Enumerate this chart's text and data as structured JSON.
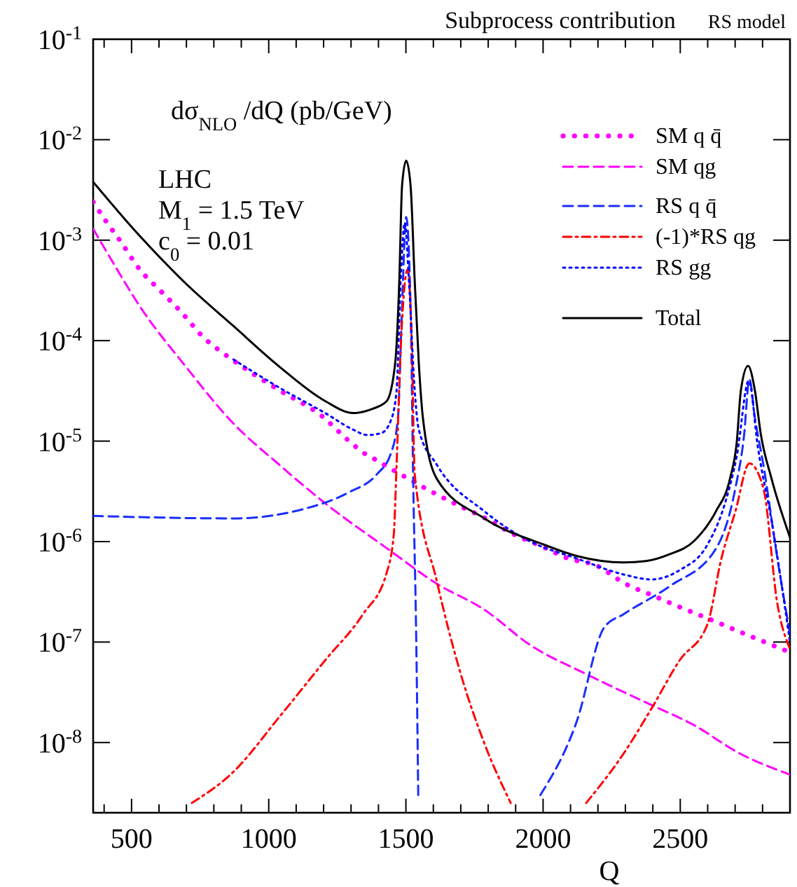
{
  "chart_data": {
    "type": "line",
    "title": "Subprocess contribution",
    "subtitle": "RS model",
    "xlabel": "Q",
    "ylabel": "dσ$_{NLO}$ /dQ (pb/GeV)",
    "annotations": [
      "LHC",
      "M$_{1}$ = 1.5 TeV",
      "c$_{0}$ = 0.01"
    ],
    "log": "y",
    "grid": false,
    "legend": "top right",
    "xlim": [
      360,
      2900
    ],
    "xticks": [
      {
        "value": 400,
        "label": null
      },
      500,
      {
        "value": 600,
        "label": null
      },
      {
        "value": 700,
        "label": null
      },
      {
        "value": 800,
        "label": null
      },
      {
        "value": 900,
        "label": null
      },
      1000,
      {
        "value": 1100,
        "label": null
      },
      {
        "value": 1200,
        "label": null
      },
      {
        "value": 1300,
        "label": null
      },
      {
        "value": 1400,
        "label": null
      },
      1500,
      {
        "value": 1600,
        "label": null
      },
      {
        "value": 1700,
        "label": null
      },
      {
        "value": 1800,
        "label": null
      },
      {
        "value": 1900,
        "label": null
      },
      2000,
      {
        "value": 2100,
        "label": null
      },
      {
        "value": 2200,
        "label": null
      },
      {
        "value": 2300,
        "label": null
      },
      {
        "value": 2400,
        "label": null
      },
      2500,
      {
        "value": 2600,
        "label": null
      },
      {
        "value": 2700,
        "label": null
      },
      {
        "value": 2800,
        "label": null
      }
    ],
    "ylim": [
      2e-09,
      0.1
    ],
    "yticks": [
      {
        "value": 0.1,
        "label": "10$^{-1}$"
      },
      {
        "value": 0.01,
        "label": "10$^{-2}$"
      },
      {
        "value": 0.001,
        "label": "10$^{-3}$"
      },
      {
        "value": 0.0001,
        "label": "10$^{-4}$"
      },
      {
        "value": 1e-05,
        "label": "10$^{-5}$"
      },
      {
        "value": 1e-06,
        "label": "10$^{-6}$"
      },
      {
        "value": 1e-07,
        "label": "10$^{-7}$"
      },
      {
        "value": 1e-08,
        "label": "10$^{-8}$"
      }
    ],
    "series": [
      {
        "name": "SM q q̄",
        "color": "#ff00ff",
        "line_style": "dotted",
        "x": [
          360,
          403,
          459,
          530,
          607,
          683,
          759,
          846,
          937,
          1039,
          1191,
          1293,
          1344,
          1395,
          1491,
          1588,
          1690,
          1791,
          1888,
          1990,
          2091,
          2193,
          2300,
          2401,
          2503,
          2605,
          2706,
          2808,
          2900
        ],
        "values": [
          0.0024,
          0.0016,
          0.00098,
          0.00051,
          0.00031,
          0.00019,
          0.00011,
          7.1e-05,
          4.8e-05,
          3.2e-05,
          1.8e-05,
          1e-05,
          7.7e-06,
          6.4e-06,
          4.5e-06,
          3.2e-06,
          2.3e-06,
          1.7e-06,
          1.2e-06,
          9.1e-07,
          6.8e-07,
          5.8e-07,
          3.8e-07,
          2.9e-07,
          2.2e-07,
          1.7e-07,
          1.3e-07,
          1e-07,
          7.9e-08
        ]
      },
      {
        "name": "SM qg",
        "color": "#ff00ff",
        "line_style": "dashed",
        "x": [
          360,
          429,
          530,
          698,
          871,
          1039,
          1206,
          1430,
          1613,
          1786,
          1954,
          2157,
          2375,
          2548,
          2716,
          2900
        ],
        "values": [
          0.0013,
          0.00062,
          0.00022,
          5.5e-05,
          1.5e-05,
          5.8e-06,
          2.4e-06,
          8.6e-07,
          3.8e-07,
          2.1e-07,
          9.3e-08,
          4.8e-08,
          2.5e-08,
          1.5e-08,
          7.8e-09,
          4.8e-09
        ]
      },
      {
        "name": "RS q q̄",
        "color": "#1a2eff",
        "line_style": "dashed",
        "x": [
          360,
          871,
          1125,
          1293,
          1395,
          1445,
          1471,
          1486,
          1501,
          1517,
          1527,
          1537,
          1545,
          1700,
          1990,
          2122,
          2223,
          2294,
          2462,
          2630,
          2701,
          2732,
          2752,
          2772,
          2803,
          2854,
          2900
        ],
        "values": [
          1.8e-06,
          1.7e-06,
          2.1e-06,
          3.1e-06,
          4.7e-06,
          7.5e-06,
          1.7e-05,
          0.00022,
          0.0017,
          0.00022,
          3.4e-06,
          1.4e-07,
          3e-09,
          null,
          3e-09,
          1.6e-08,
          1.4e-07,
          1.9e-07,
          3.6e-07,
          8.5e-07,
          3.4e-06,
          1.1e-05,
          4.1e-05,
          1.7e-05,
          5.8e-06,
          6.8e-07,
          1.2e-07
        ]
      },
      {
        "name": "(-1)*RS qg",
        "color": "#ff0000",
        "line_style": "dashdot",
        "x": [
          720,
          871,
          1039,
          1206,
          1344,
          1430,
          1456,
          1466,
          1481,
          1506,
          1522,
          1532,
          1613,
          1700,
          1786,
          1882,
          2000,
          2157,
          2294,
          2396,
          2498,
          2599,
          2650,
          2701,
          2752,
          2803,
          2854,
          2900
        ],
        "values": [
          2.5e-09,
          5.1e-09,
          1.8e-08,
          6.6e-08,
          1.9e-07,
          4.9e-07,
          1.2e-06,
          5.8e-06,
          8.3e-05,
          0.00051,
          8.3e-05,
          4.7e-06,
          4e-07,
          4.8e-08,
          9.8e-09,
          2.5e-09,
          null,
          2.5e-09,
          7.8e-09,
          2.2e-08,
          6.6e-08,
          1.5e-07,
          6.8e-07,
          2e-06,
          6e-06,
          3.4e-06,
          2.4e-07,
          8.5e-08
        ]
      },
      {
        "name": "RS gg",
        "color": "#0000ff",
        "line_style": "dotted",
        "x": [
          871,
          1039,
          1206,
          1308,
          1359,
          1410,
          1445,
          1466,
          1481,
          1496,
          1511,
          1532,
          1547,
          1613,
          1786,
          1954,
          2122,
          2294,
          2396,
          2498,
          2599,
          2665,
          2706,
          2750,
          2783,
          2833,
          2900
        ],
        "values": [
          6.5e-05,
          3.4e-05,
          1.9e-05,
          1.3e-05,
          1.15e-05,
          1.2e-05,
          1.6e-05,
          3.2e-05,
          0.0004,
          0.0015,
          0.0004,
          3.2e-05,
          1.3e-05,
          5.8e-06,
          2e-06,
          1e-06,
          6.8e-07,
          4.7e-07,
          4.2e-07,
          5.2e-07,
          9.3e-07,
          2.5e-06,
          7.1e-06,
          4e-05,
          8.7e-06,
          1.6e-06,
          1e-07
        ]
      },
      {
        "name": "Total",
        "color": "#000000",
        "line_style": "solid",
        "x": [
          360,
          530,
          698,
          871,
          1039,
          1206,
          1308,
          1379,
          1430,
          1461,
          1476,
          1486,
          1501,
          1517,
          1532,
          1547,
          1562,
          1613,
          1786,
          2004,
          2122,
          2294,
          2375,
          2462,
          2548,
          2630,
          2681,
          2706,
          2721,
          2747,
          2772,
          2793,
          2833,
          2900
        ],
        "values": [
          0.0038,
          0.0011,
          0.00037,
          0.00014,
          5.5e-05,
          2.5e-05,
          1.9e-05,
          2.1e-05,
          2.5e-05,
          6e-05,
          0.0004,
          0.0035,
          0.0062,
          0.0035,
          0.0004,
          6e-05,
          1.7e-05,
          4.2e-06,
          1.7e-06,
          9.3e-07,
          7.2e-07,
          6.2e-07,
          6.4e-07,
          7.5e-07,
          1e-06,
          2e-06,
          4.2e-06,
          9.8e-06,
          3.2e-05,
          5.6e-05,
          3.2e-05,
          1.2e-05,
          4.2e-06,
          1.1e-06
        ]
      }
    ]
  }
}
